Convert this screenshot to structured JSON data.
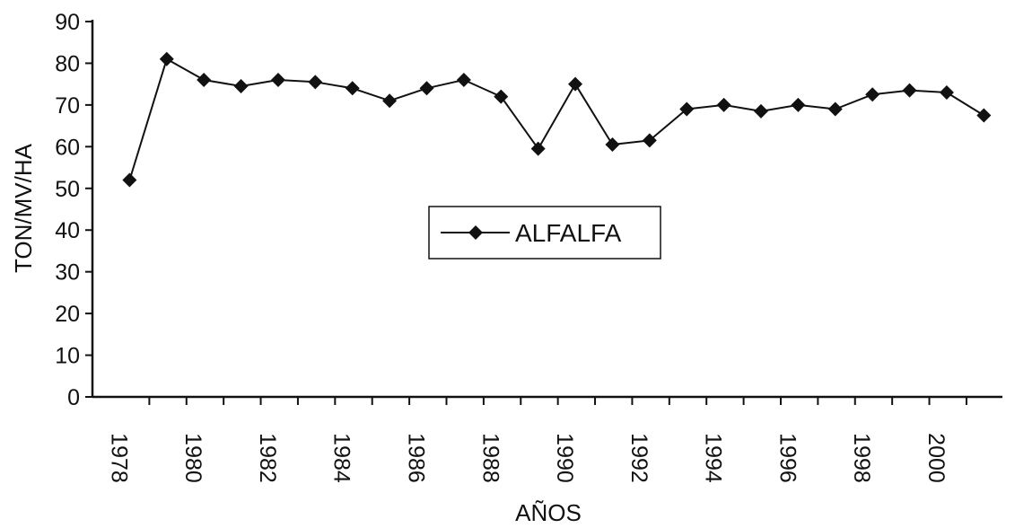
{
  "chart_data": {
    "type": "line",
    "title": "",
    "xlabel": "AÑOS",
    "ylabel": "TON/MV/HA",
    "ylim": [
      0,
      90
    ],
    "yticks": [
      0,
      10,
      20,
      30,
      40,
      50,
      60,
      70,
      80,
      90
    ],
    "x": [
      1978,
      1979,
      1980,
      1981,
      1982,
      1983,
      1984,
      1985,
      1986,
      1987,
      1988,
      1989,
      1990,
      1991,
      1992,
      1993,
      1994,
      1995,
      1996,
      1997,
      1998,
      1999,
      2000,
      2001
    ],
    "xtick_labels": [
      "1978",
      "1980",
      "1982",
      "1984",
      "1986",
      "1988",
      "1990",
      "1992",
      "1994",
      "1996",
      "1998",
      "2000"
    ],
    "series": [
      {
        "name": "ALFALFA",
        "color": "#111111",
        "marker": "diamond",
        "values": [
          52,
          81,
          76,
          74.5,
          76,
          75.5,
          74,
          71,
          74,
          76,
          72,
          59.5,
          75,
          60.5,
          61.5,
          69,
          70,
          68.5,
          70,
          69,
          72.5,
          73.5,
          73,
          67.5
        ]
      }
    ],
    "legend": "center",
    "grid": false
  }
}
